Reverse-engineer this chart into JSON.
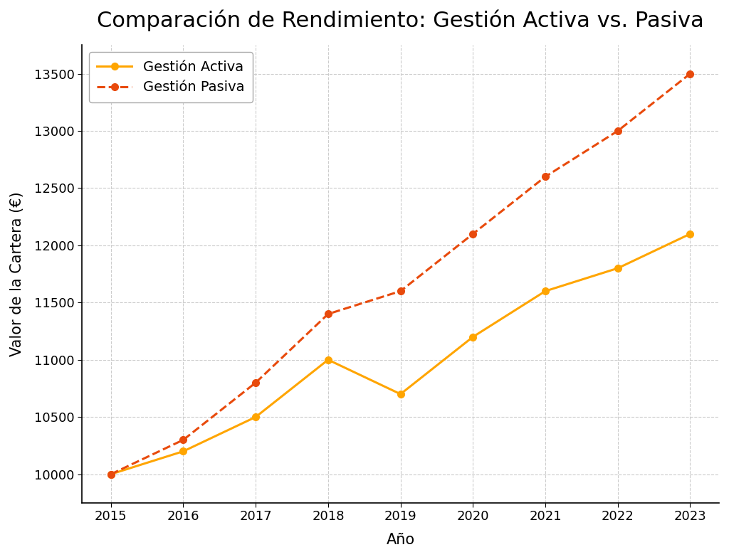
{
  "title": "Comparación de Rendimiento: Gestión Activa vs. Pasiva",
  "xlabel": "Año",
  "ylabel": "Valor de la Cartera (€)",
  "years": [
    2015,
    2016,
    2017,
    2018,
    2019,
    2020,
    2021,
    2022,
    2023
  ],
  "activa": [
    10000,
    10200,
    10500,
    11000,
    10700,
    11200,
    11600,
    11800,
    12100
  ],
  "pasiva": [
    10000,
    10300,
    10800,
    11400,
    11600,
    12100,
    12600,
    13000,
    13500
  ],
  "activa_color": "#FFA500",
  "pasiva_color": "#E84A0C",
  "activa_label": "Gestión Activa",
  "pasiva_label": "Gestión Pasiva",
  "background_color": "#FFFFFF",
  "grid_color": "#CCCCCC",
  "yticks": [
    10000,
    10500,
    11000,
    11500,
    12000,
    12500,
    13000,
    13500
  ],
  "ylim": [
    9750,
    13750
  ],
  "xlim_min": 2014.6,
  "xlim_max": 2023.4,
  "title_fontsize": 22,
  "label_fontsize": 15,
  "tick_fontsize": 13,
  "legend_fontsize": 14
}
